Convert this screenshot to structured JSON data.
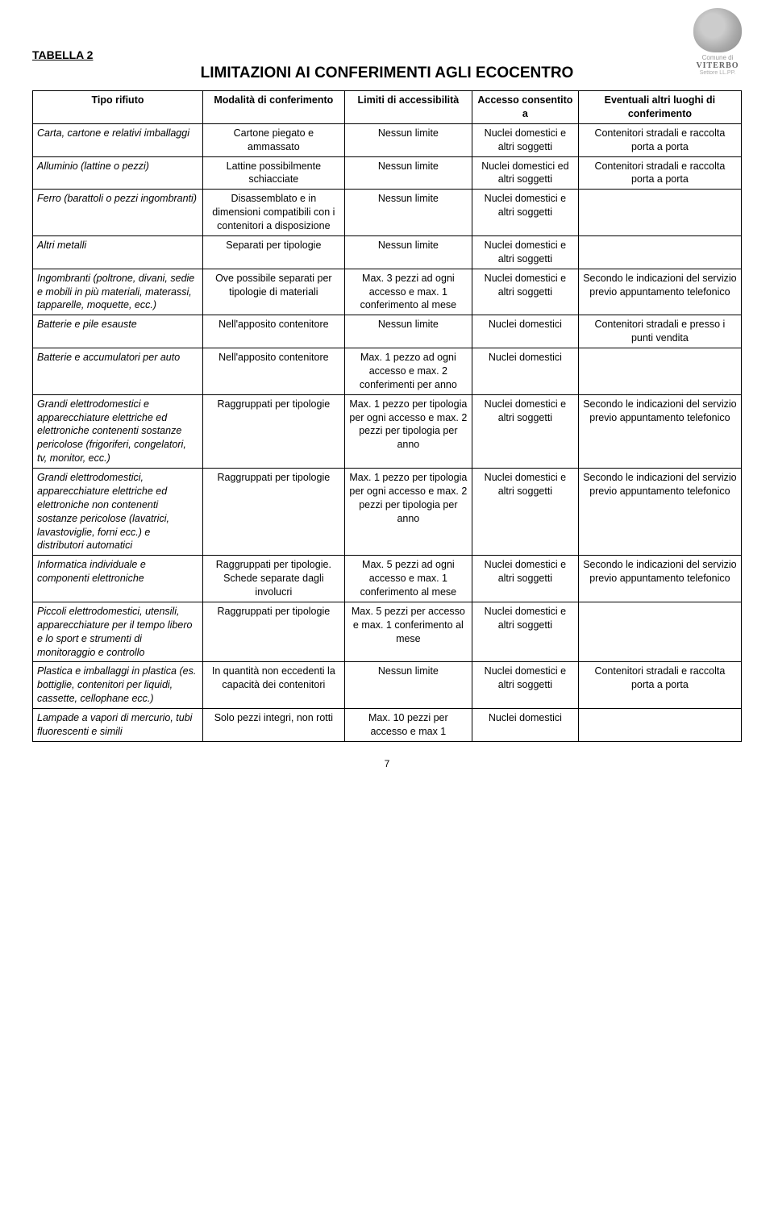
{
  "logo": {
    "line1": "Comune di",
    "line2": "VITERBO",
    "line3": "Settore LL.PP."
  },
  "section_label": "TABELLA 2",
  "title": "LIMITAZIONI AI CONFERIMENTI AGLI ECOCENTRO",
  "headers": {
    "c1": "Tipo rifiuto",
    "c2": "Modalità di conferimento",
    "c3": "Limiti di accessibilità",
    "c4": "Accesso consentito a",
    "c5": "Eventuali altri luoghi di conferimento"
  },
  "rows": [
    {
      "c1": "Carta, cartone e relativi imballaggi",
      "c2": "Cartone piegato e ammassato",
      "c3": "Nessun limite",
      "c4": "Nuclei domestici e altri soggetti",
      "c5": "Contenitori stradali e raccolta porta a porta"
    },
    {
      "c1": "Alluminio (lattine o pezzi)",
      "c2": "Lattine possibilmente schiacciate",
      "c3": "Nessun limite",
      "c4": "Nuclei domestici ed altri soggetti",
      "c5": "Contenitori stradali e raccolta porta a porta"
    },
    {
      "c1": "Ferro (barattoli o pezzi ingombranti)",
      "c2": "Disassemblato e in dimensioni compatibili con i contenitori a disposizione",
      "c3": "Nessun limite",
      "c4": "Nuclei domestici e altri soggetti",
      "c5": ""
    },
    {
      "c1": "Altri metalli",
      "c2": "Separati per tipologie",
      "c3": "Nessun limite",
      "c4": "Nuclei domestici e altri soggetti",
      "c5": ""
    },
    {
      "c1": "Ingombranti (poltrone, divani, sedie e mobili in più materiali, materassi, tapparelle, moquette, ecc.)",
      "c2": "Ove possibile separati per tipologie di materiali",
      "c3": "Max. 3 pezzi ad ogni accesso e max. 1 conferimento al mese",
      "c4": "Nuclei domestici e altri soggetti",
      "c5": "Secondo le indicazioni del servizio previo appuntamento telefonico"
    },
    {
      "c1": "Batterie e pile esauste",
      "c2": "Nell'apposito contenitore",
      "c3": "Nessun limite",
      "c4": "Nuclei domestici",
      "c5": "Contenitori stradali e presso i punti vendita"
    },
    {
      "c1": "Batterie e accumulatori per auto",
      "c2": "Nell'apposito contenitore",
      "c3": "Max. 1 pezzo ad ogni accesso e max. 2 conferimenti per anno",
      "c4": "Nuclei domestici",
      "c5": ""
    },
    {
      "c1": "Grandi elettrodomestici e apparecchiature elettriche ed elettroniche contenenti sostanze pericolose (frigoriferi, congelatori, tv, monitor, ecc.)",
      "c2": "Raggruppati per tipologie",
      "c3": "Max. 1 pezzo per tipologia per ogni accesso e max. 2 pezzi per tipologia per anno",
      "c4": "Nuclei domestici e altri soggetti",
      "c5": "Secondo le indicazioni del servizio previo appuntamento telefonico"
    },
    {
      "c1": "Grandi elettrodomestici, apparecchiature elettriche ed elettroniche non contenenti sostanze pericolose (lavatrici, lavastoviglie, forni ecc.) e distributori automatici",
      "c2": "Raggruppati per tipologie",
      "c3": "Max. 1 pezzo per tipologia per ogni accesso e max. 2 pezzi per tipologia per anno",
      "c4": "Nuclei domestici e altri soggetti",
      "c5": "Secondo le indicazioni del servizio previo appuntamento telefonico"
    },
    {
      "c1": "Informatica individuale e componenti elettroniche",
      "c2": "Raggruppati per tipologie. Schede separate dagli involucri",
      "c3": "Max. 5 pezzi ad ogni accesso e max. 1 conferimento al mese",
      "c4": "Nuclei domestici e altri soggetti",
      "c5": "Secondo le indicazioni del servizio previo appuntamento telefonico"
    },
    {
      "c1": "Piccoli elettrodomestici, utensili, apparecchiature per il tempo libero e lo sport e strumenti di monitoraggio e controllo",
      "c2": "Raggruppati per tipologie",
      "c3": "Max. 5 pezzi per accesso e max. 1 conferimento al mese",
      "c4": "Nuclei domestici e altri soggetti",
      "c5": ""
    },
    {
      "c1": "Plastica e imballaggi in plastica (es. bottiglie, contenitori per liquidi, cassette, cellophane ecc.)",
      "c2": "In quantità non eccedenti la capacità dei contenitori",
      "c3": "Nessun limite",
      "c4": "Nuclei domestici e altri soggetti",
      "c5": "Contenitori stradali e raccolta porta a porta"
    },
    {
      "c1": "Lampade a vapori di mercurio, tubi fluorescenti e simili",
      "c2": "Solo pezzi integri, non rotti",
      "c3": "Max. 10 pezzi per accesso e max 1",
      "c4": "Nuclei domestici",
      "c5": ""
    }
  ],
  "page_number": "7"
}
